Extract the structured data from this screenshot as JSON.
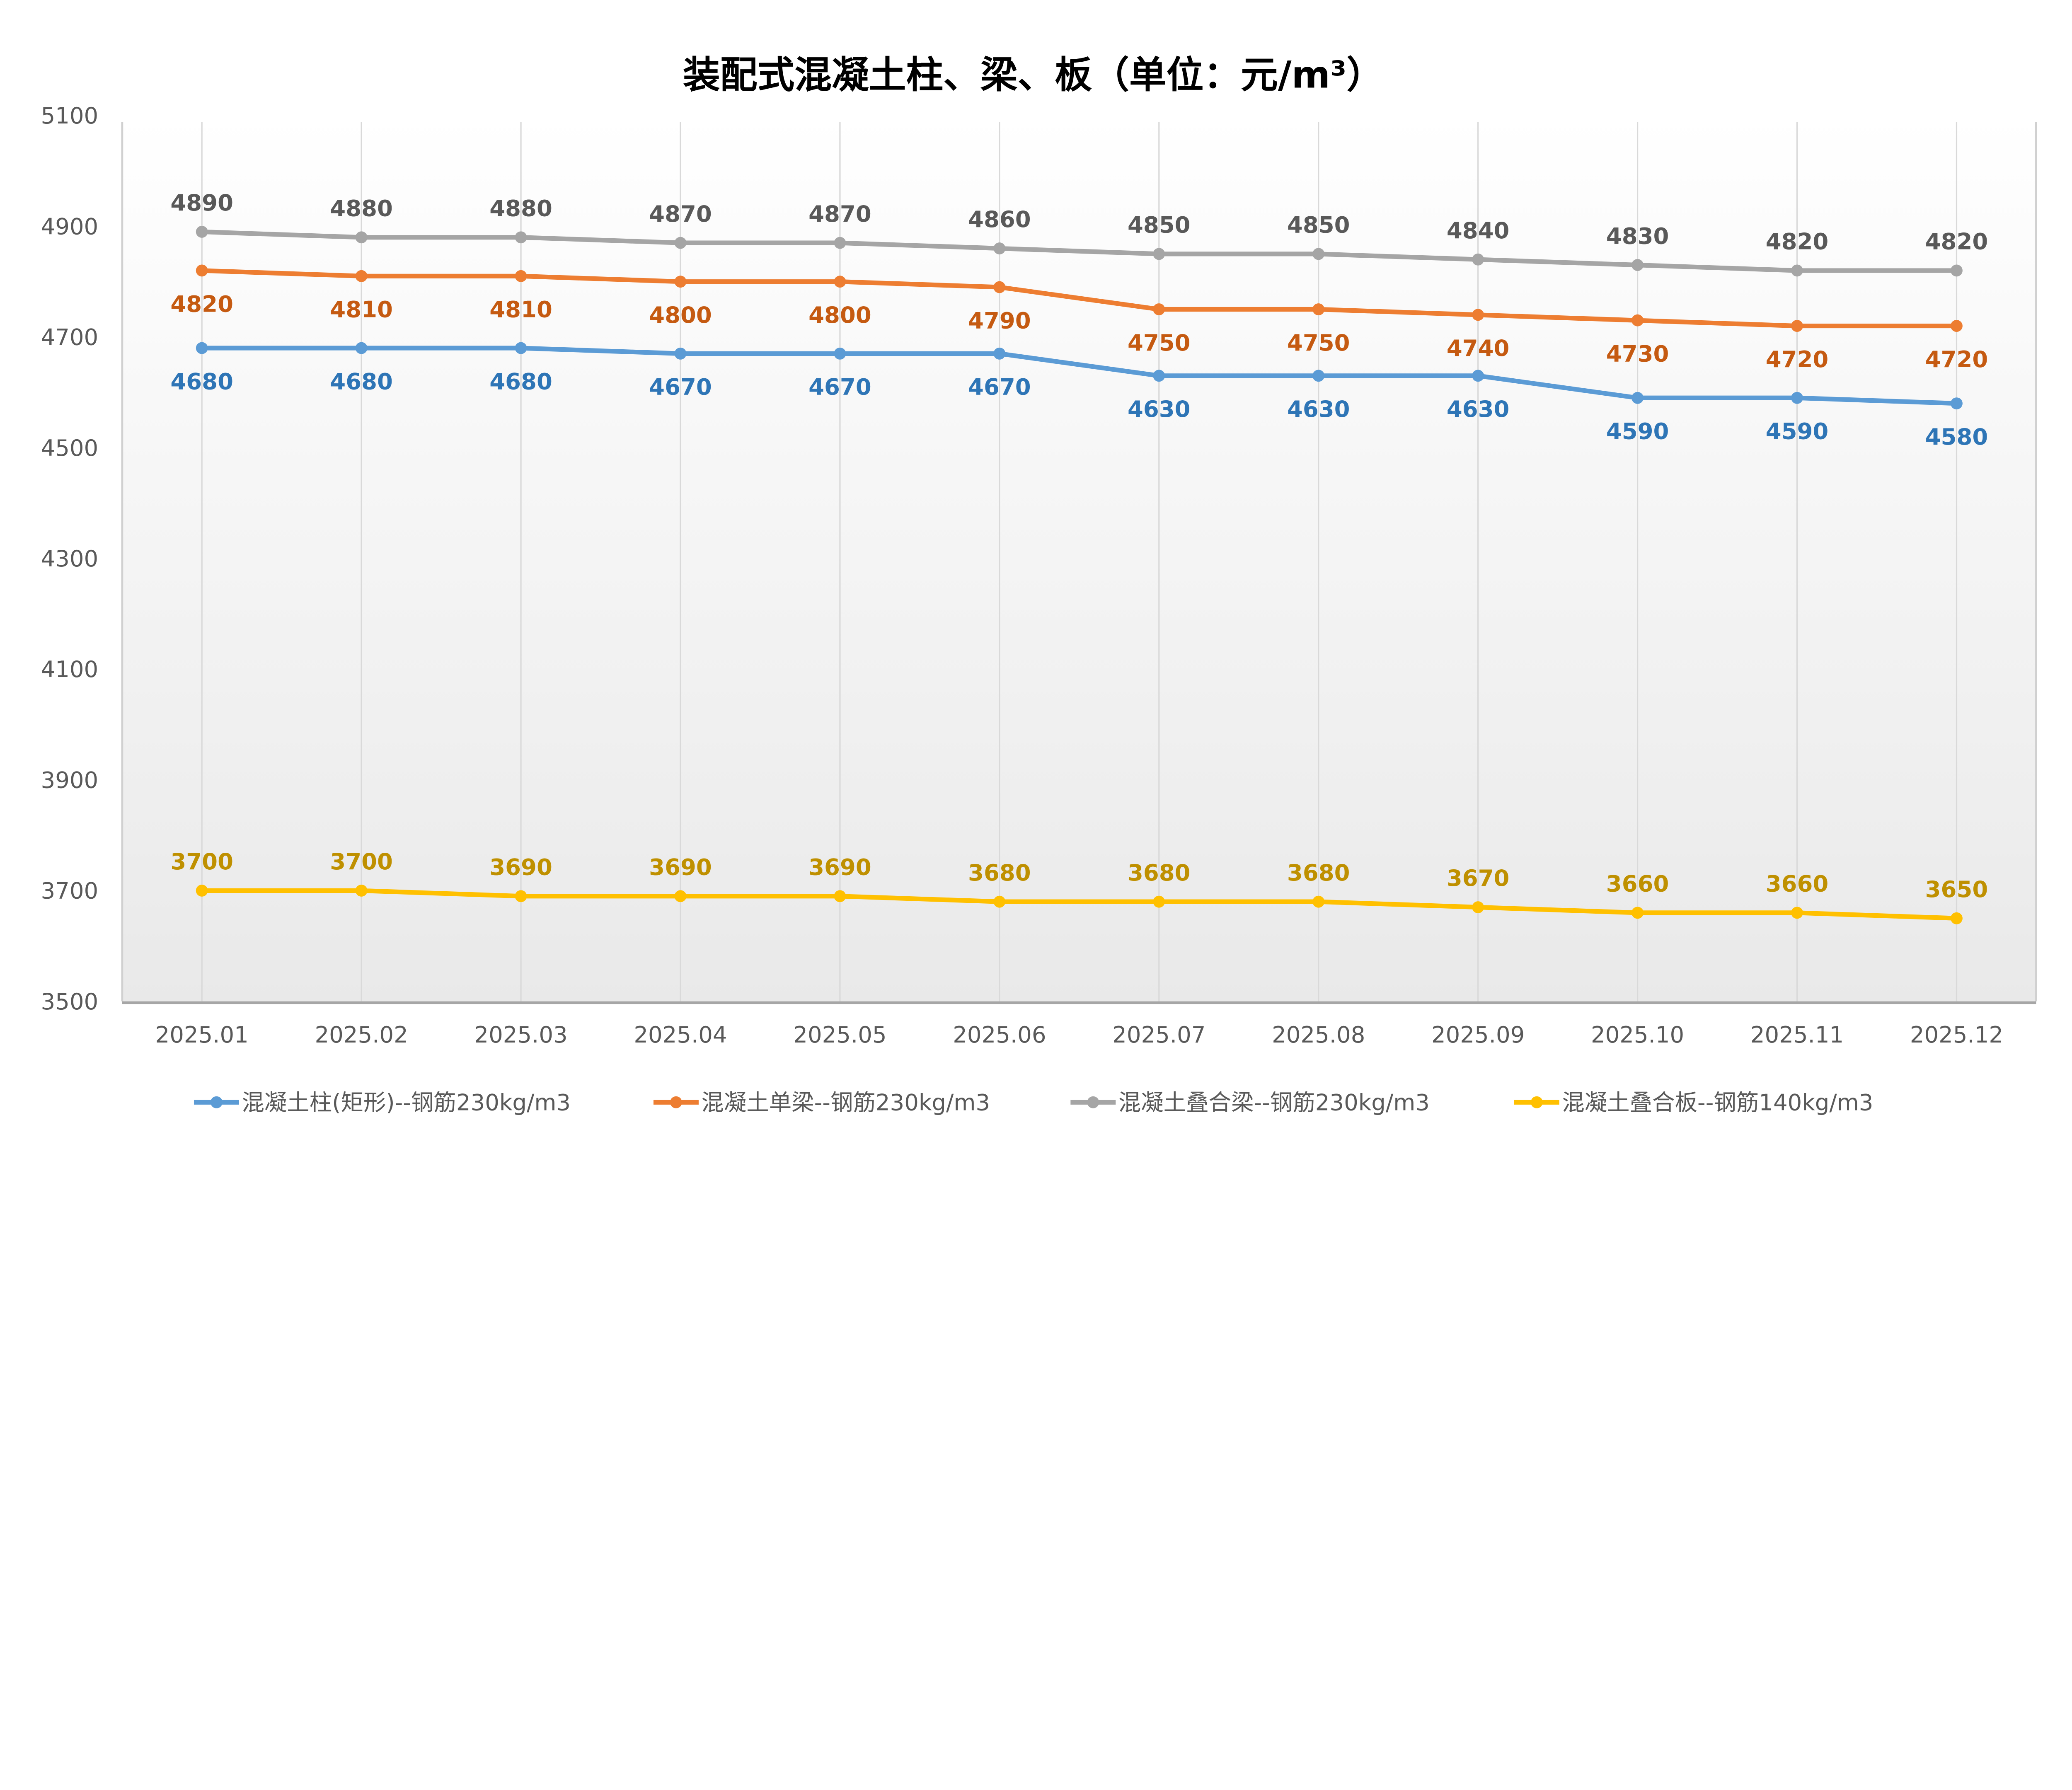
{
  "chart_data": {
    "type": "line",
    "title": "装配式混凝土柱、梁、板（单位：元/m³）",
    "xlabel": "",
    "ylabel": "",
    "ylim": [
      3500,
      5100
    ],
    "yticks": [
      3500,
      3700,
      3900,
      4100,
      4300,
      4500,
      4700,
      4900,
      5100
    ],
    "grid": "vertical",
    "legend_position": "bottom",
    "categories": [
      "2025.01",
      "2025.02",
      "2025.03",
      "2025.04",
      "2025.05",
      "2025.06",
      "2025.07",
      "2025.08",
      "2025.09",
      "2025.10",
      "2025.11",
      "2025.12"
    ],
    "series": [
      {
        "name": "混凝土柱(矩形)--钢筋230kg/m3",
        "color": "#5B9BD5",
        "label_color": "#2E75B6",
        "label_pos": "below",
        "values": [
          4680,
          4680,
          4680,
          4670,
          4670,
          4670,
          4630,
          4630,
          4630,
          4590,
          4590,
          4580
        ]
      },
      {
        "name": "混凝土单梁--钢筋230kg/m3",
        "color": "#ED7D31",
        "label_color": "#C55A11",
        "label_pos": "below",
        "values": [
          4820,
          4810,
          4810,
          4800,
          4800,
          4790,
          4750,
          4750,
          4740,
          4730,
          4720,
          4720
        ]
      },
      {
        "name": "混凝土叠合梁--钢筋230kg/m3",
        "color": "#A5A5A5",
        "label_color": "#595959",
        "label_pos": "above",
        "values": [
          4890,
          4880,
          4880,
          4870,
          4870,
          4860,
          4850,
          4850,
          4840,
          4830,
          4820,
          4820
        ]
      },
      {
        "name": "混凝土叠合板--钢筋140kg/m3",
        "color": "#FFC000",
        "label_color": "#BF9000",
        "label_pos": "above",
        "values": [
          3700,
          3700,
          3690,
          3690,
          3690,
          3680,
          3680,
          3680,
          3670,
          3660,
          3660,
          3650
        ]
      }
    ]
  }
}
